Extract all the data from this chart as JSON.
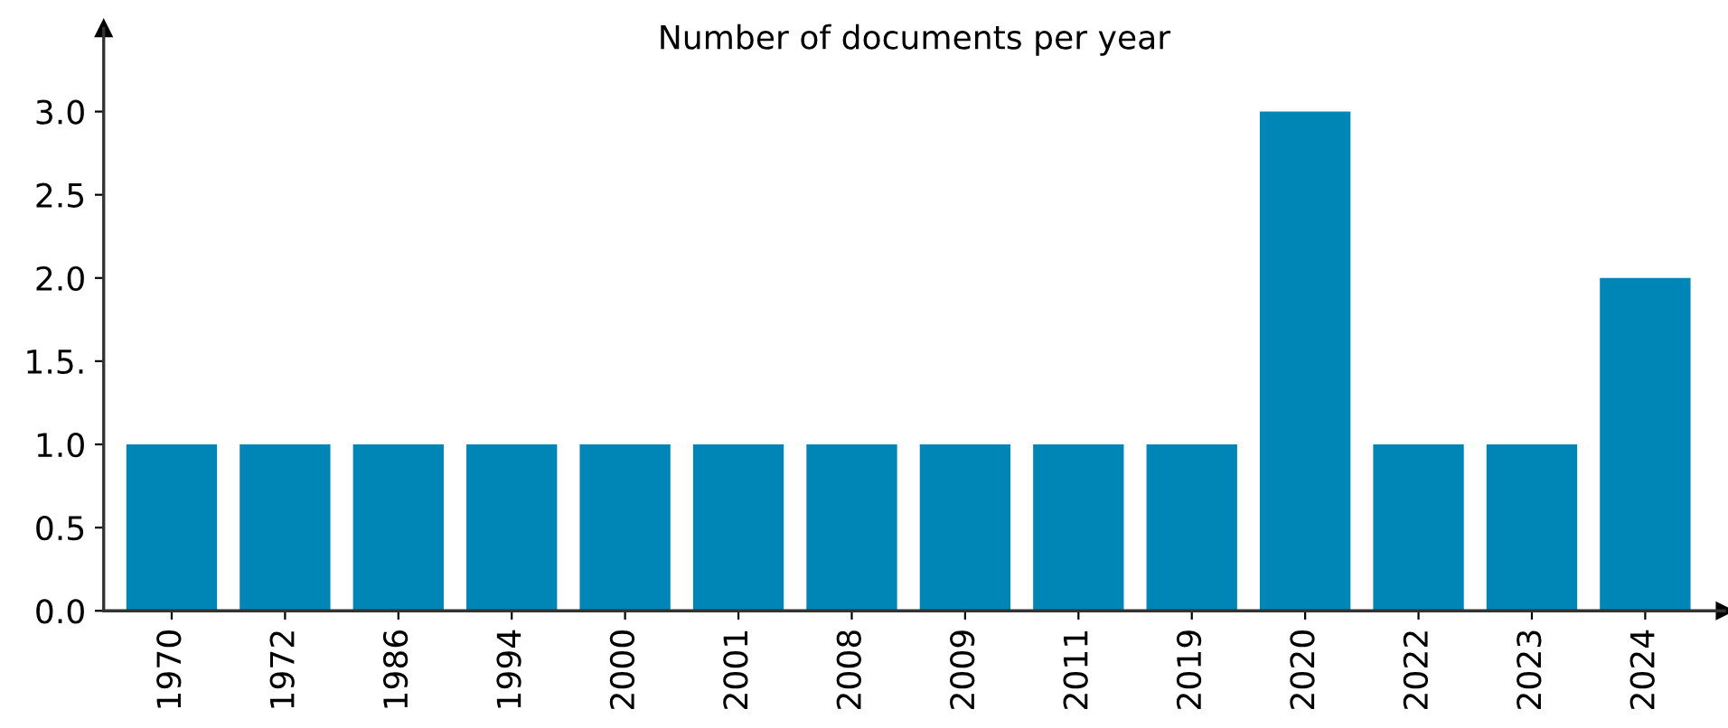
{
  "chart_data": {
    "type": "bar",
    "title": "Number of documents per year",
    "categories": [
      "1970",
      "1972",
      "1986",
      "1994",
      "2000",
      "2001",
      "2008",
      "2009",
      "2011",
      "2019",
      "2020",
      "2022",
      "2023",
      "2024"
    ],
    "values": [
      1,
      1,
      1,
      1,
      1,
      1,
      1,
      1,
      1,
      1,
      3,
      1,
      1,
      2
    ],
    "color": "#0086b6",
    "ylim": [
      0,
      3.5
    ],
    "yticks": [
      {
        "value": 0,
        "label": "0.0"
      },
      {
        "value": 0.5,
        "label": "0.5"
      },
      {
        "value": 1.0,
        "label": "1.0"
      },
      {
        "value": 1.5,
        "label": "1.5."
      },
      {
        "value": 2.0,
        "label": "2.0"
      },
      {
        "value": 2.5,
        "label": "2.5"
      },
      {
        "value": 3.0,
        "label": "3.0"
      }
    ],
    "grid": false,
    "legend": false
  }
}
